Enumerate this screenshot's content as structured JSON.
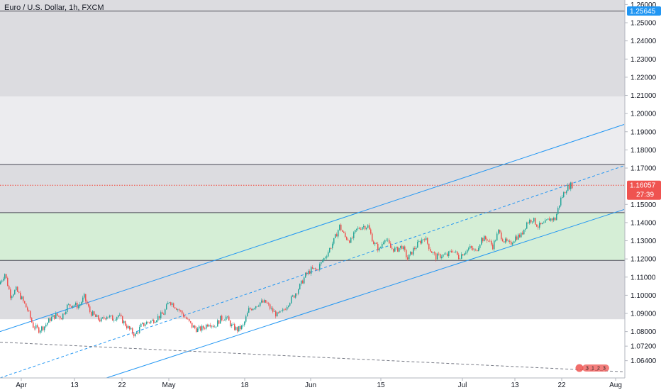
{
  "colors": {
    "up": "#26a69a",
    "down": "#ef5350",
    "channel": "#2196f3",
    "price_line": "#f44336",
    "level_badge": "#2196f3",
    "price_badge": "#ef5350",
    "zone_gray": "#dcdce0",
    "zone_light": "#ececef",
    "zone_green": "#d5eed6"
  },
  "chart_data": {
    "type": "candlestick",
    "title": "Euro / U.S. Dollar, 1h, FXCM",
    "ylim": [
      1.0545,
      1.2625
    ],
    "xlim": [
      0,
      880
    ],
    "ytick_labels": [
      "1.26000",
      "1.25000",
      "1.24000",
      "1.23000",
      "1.22000",
      "1.21000",
      "1.20000",
      "1.19000",
      "1.18000",
      "1.17000",
      "1.15000",
      "1.14000",
      "1.13000",
      "1.12000",
      "1.11000",
      "1.10000",
      "1.09000",
      "1.08000",
      "1.07200",
      "1.06400"
    ],
    "ytick_values": [
      1.26,
      1.25,
      1.24,
      1.23,
      1.22,
      1.21,
      1.2,
      1.19,
      1.18,
      1.17,
      1.15,
      1.14,
      1.13,
      1.12,
      1.11,
      1.1,
      1.09,
      1.08,
      1.072,
      1.064
    ],
    "xticks": [
      {
        "label": "Apr",
        "x": 30
      },
      {
        "label": "13",
        "x": 105
      },
      {
        "label": "22",
        "x": 172
      },
      {
        "label": "May",
        "x": 238
      },
      {
        "label": "18",
        "x": 345
      },
      {
        "label": "Jun",
        "x": 438
      },
      {
        "label": "15",
        "x": 537
      },
      {
        "label": "Jul",
        "x": 652
      },
      {
        "label": "13",
        "x": 726
      },
      {
        "label": "22",
        "x": 792
      },
      {
        "label": "Aug",
        "x": 868
      }
    ],
    "price_path": [
      [
        0,
        1.106
      ],
      [
        8,
        1.112
      ],
      [
        16,
        1.1
      ],
      [
        24,
        1.103
      ],
      [
        32,
        1.098
      ],
      [
        40,
        1.092
      ],
      [
        48,
        1.083
      ],
      [
        56,
        1.081
      ],
      [
        64,
        1.083
      ],
      [
        72,
        1.087
      ],
      [
        80,
        1.089
      ],
      [
        88,
        1.088
      ],
      [
        96,
        1.094
      ],
      [
        104,
        1.095
      ],
      [
        112,
        1.094
      ],
      [
        120,
        1.099
      ],
      [
        128,
        1.091
      ],
      [
        136,
        1.088
      ],
      [
        144,
        1.086
      ],
      [
        152,
        1.089
      ],
      [
        160,
        1.087
      ],
      [
        168,
        1.089
      ],
      [
        176,
        1.085
      ],
      [
        184,
        1.081
      ],
      [
        192,
        1.078
      ],
      [
        200,
        1.083
      ],
      [
        208,
        1.085
      ],
      [
        216,
        1.086
      ],
      [
        224,
        1.088
      ],
      [
        232,
        1.09
      ],
      [
        240,
        1.097
      ],
      [
        248,
        1.094
      ],
      [
        256,
        1.091
      ],
      [
        264,
        1.087
      ],
      [
        272,
        1.083
      ],
      [
        280,
        1.081
      ],
      [
        288,
        1.082
      ],
      [
        296,
        1.085
      ],
      [
        304,
        1.083
      ],
      [
        312,
        1.087
      ],
      [
        320,
        1.088
      ],
      [
        328,
        1.083
      ],
      [
        336,
        1.081
      ],
      [
        344,
        1.083
      ],
      [
        352,
        1.092
      ],
      [
        360,
        1.094
      ],
      [
        368,
        1.096
      ],
      [
        376,
        1.096
      ],
      [
        384,
        1.092
      ],
      [
        392,
        1.089
      ],
      [
        400,
        1.091
      ],
      [
        408,
        1.096
      ],
      [
        416,
        1.1
      ],
      [
        424,
        1.105
      ],
      [
        432,
        1.111
      ],
      [
        440,
        1.114
      ],
      [
        448,
        1.114
      ],
      [
        456,
        1.119
      ],
      [
        464,
        1.124
      ],
      [
        472,
        1.13
      ],
      [
        480,
        1.138
      ],
      [
        488,
        1.132
      ],
      [
        496,
        1.13
      ],
      [
        504,
        1.136
      ],
      [
        512,
        1.138
      ],
      [
        520,
        1.138
      ],
      [
        528,
        1.129
      ],
      [
        536,
        1.125
      ],
      [
        544,
        1.132
      ],
      [
        552,
        1.126
      ],
      [
        560,
        1.125
      ],
      [
        568,
        1.127
      ],
      [
        576,
        1.12
      ],
      [
        584,
        1.125
      ],
      [
        592,
        1.129
      ],
      [
        600,
        1.132
      ],
      [
        608,
        1.125
      ],
      [
        616,
        1.121
      ],
      [
        624,
        1.122
      ],
      [
        632,
        1.122
      ],
      [
        640,
        1.125
      ],
      [
        648,
        1.121
      ],
      [
        656,
        1.124
      ],
      [
        664,
        1.126
      ],
      [
        672,
        1.124
      ],
      [
        680,
        1.131
      ],
      [
        688,
        1.131
      ],
      [
        696,
        1.127
      ],
      [
        704,
        1.135
      ],
      [
        712,
        1.13
      ],
      [
        720,
        1.128
      ],
      [
        728,
        1.132
      ],
      [
        736,
        1.133
      ],
      [
        744,
        1.14
      ],
      [
        752,
        1.142
      ],
      [
        760,
        1.138
      ],
      [
        768,
        1.139
      ],
      [
        776,
        1.142
      ],
      [
        784,
        1.142
      ],
      [
        792,
        1.153
      ],
      [
        800,
        1.159
      ],
      [
        806,
        1.1606
      ]
    ],
    "zones": [
      {
        "from": 1.2564,
        "to": 1.2625,
        "color": "#dcdce0"
      },
      {
        "from": 1.2094,
        "to": 1.2564,
        "color": "#dcdce0"
      },
      {
        "from": 1.172,
        "to": 1.2094,
        "color": "#ececef"
      },
      {
        "from": 1.1455,
        "to": 1.172,
        "color": "#dcdce0"
      },
      {
        "from": 1.1192,
        "to": 1.1455,
        "color": "#d5eed6"
      },
      {
        "from": 1.0868,
        "to": 1.1192,
        "color": "#dcdce0"
      }
    ],
    "horizontal_lines": [
      1.2564,
      1.172,
      1.1455,
      1.1192
    ],
    "channel_lines": [
      {
        "from": [
          0,
          1.08
        ],
        "to": [
          880,
          1.194
        ],
        "style": "solid"
      },
      {
        "from": [
          0,
          1.0545
        ],
        "to": [
          880,
          1.1713
        ],
        "style": "dashed"
      },
      {
        "from": [
          150,
          1.0545
        ],
        "to": [
          880,
          1.1472
        ],
        "style": "solid"
      }
    ],
    "trend_line_gray": {
      "from": [
        0,
        1.0742
      ],
      "to": [
        880,
        1.0579
      ],
      "style": "dashed"
    },
    "current_price": 1.16057,
    "level_label": 1.25645,
    "labels": {
      "level": "1.25645",
      "price": "1.16057",
      "countdown": "27:39"
    }
  },
  "watermark": {
    "items": [
      "3",
      "1",
      "2",
      "3"
    ]
  }
}
